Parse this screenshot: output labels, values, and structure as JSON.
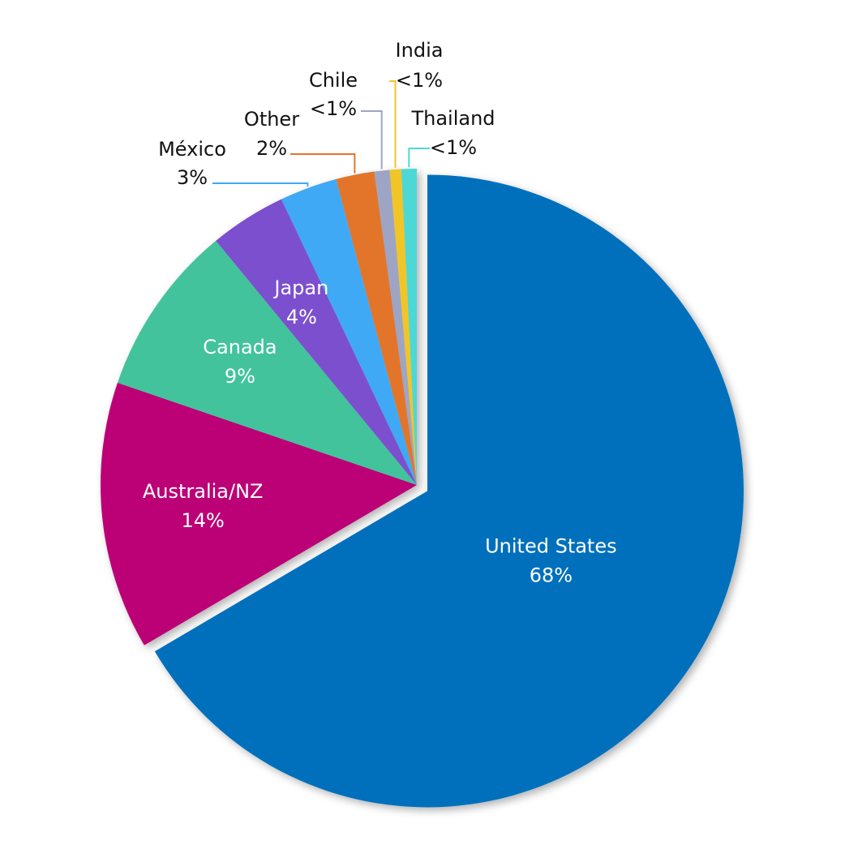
{
  "chart_data": {
    "type": "pie",
    "categories": [
      "United States",
      "Australia/NZ",
      "Canada",
      "Japan",
      "México",
      "Other",
      "Chile",
      "India",
      "Thailand"
    ],
    "values": [
      68,
      14,
      9,
      4,
      3,
      2,
      0.8,
      0.6,
      0.8
    ],
    "value_labels": [
      "68%",
      "14%",
      "9%",
      "4%",
      "3%",
      "2%",
      "<1%",
      "<1%",
      "<1%"
    ],
    "colors": [
      "#0070bc",
      "#bc0076",
      "#42c39c",
      "#7b4fcf",
      "#40a9f5",
      "#e2752c",
      "#9ea5c4",
      "#f2c526",
      "#4dd8d6"
    ]
  }
}
